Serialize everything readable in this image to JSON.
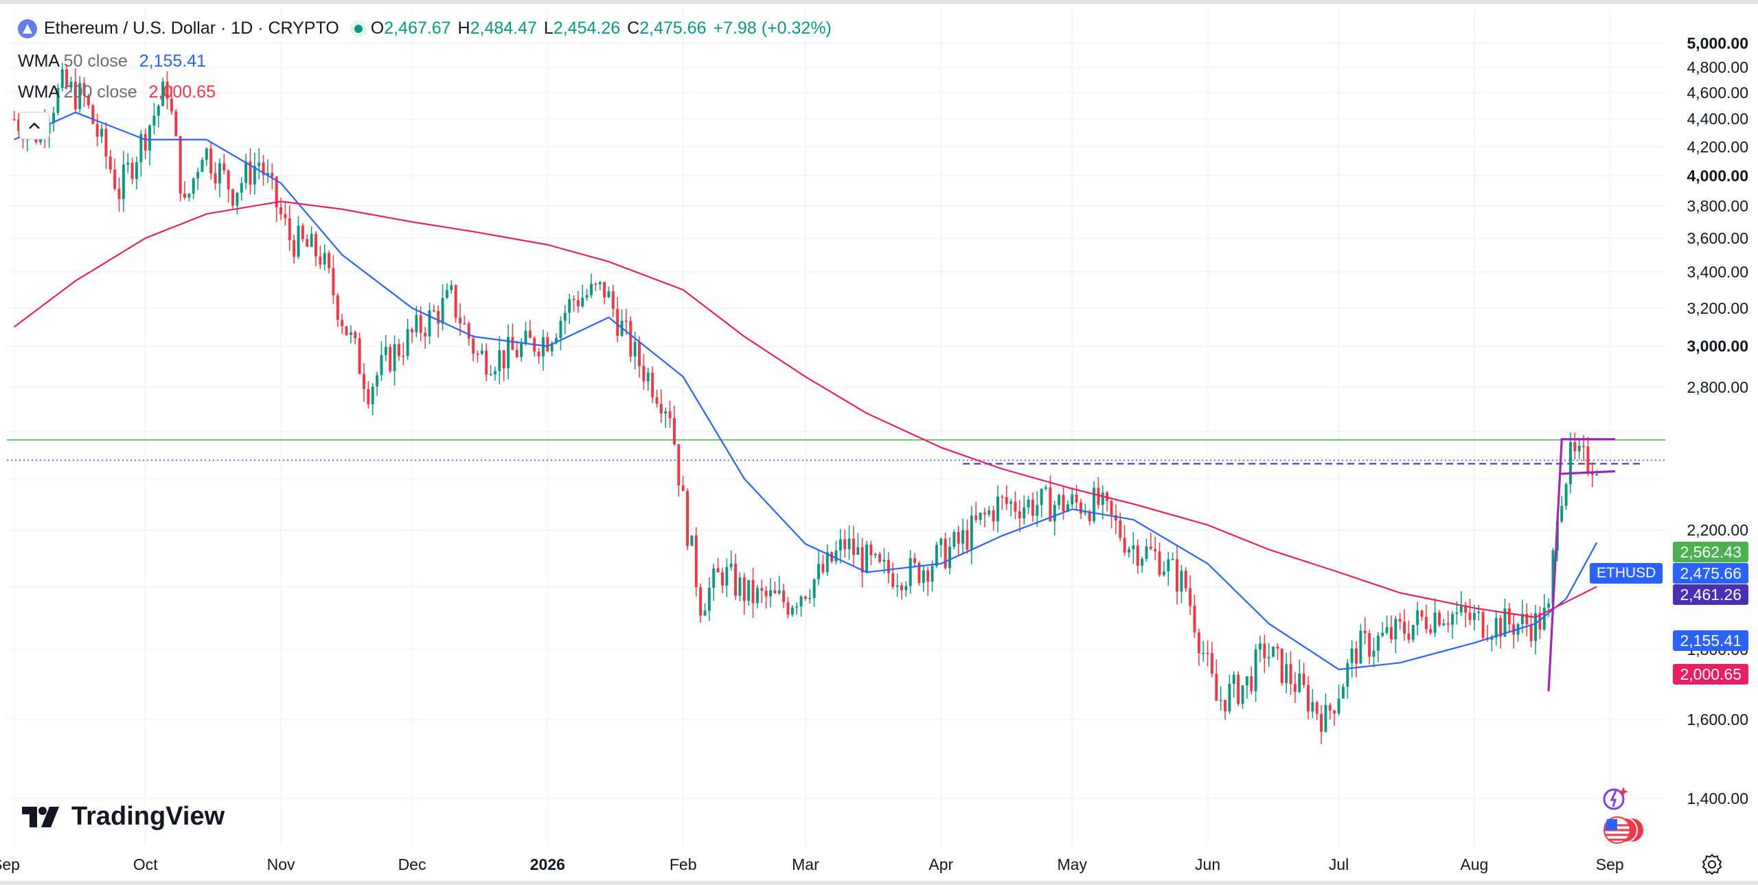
{
  "header": {
    "symbol_title": "Ethereum / U.S. Dollar · 1D · CRYPTO",
    "open_key": "O",
    "open": "2,467.67",
    "high_key": "H",
    "high": "2,484.47",
    "low_key": "L",
    "low": "2,454.26",
    "close_key": "C",
    "close": "2,475.66",
    "change": "+7.98 (+0.32%)"
  },
  "indicators": {
    "wma50": {
      "name": "WMA",
      "params": "50 close",
      "value": "2,155.41"
    },
    "wma200": {
      "name": "WMA",
      "params": "200 close",
      "value": "2,000.65"
    }
  },
  "brand": {
    "name": "TradingView"
  },
  "colors": {
    "up": "#089981",
    "down": "#f23645",
    "wma50": "#2962ff",
    "wma200": "#e91e63",
    "resistance": "#4caf50",
    "pattern": "#9c27b0",
    "symbol_tag": "#2962ff",
    "level_tag": "#4a2fb5"
  },
  "axis_labels": {
    "prices": [
      "5,000.00",
      "4,800.00",
      "4,600.00",
      "4,400.00",
      "4,200.00",
      "4,000.00",
      "3,800.00",
      "3,600.00",
      "3,400.00",
      "3,200.00",
      "3,000.00",
      "2,800.00",
      "2,200.00",
      "1,800.00",
      "1,600.00",
      "1,400.00"
    ],
    "bold_prices": [
      "5,000.00",
      "4,000.00",
      "3,000.00"
    ],
    "months": [
      "Sep",
      "Oct",
      "Nov",
      "Dec",
      "2026",
      "Feb",
      "Mar",
      "Apr",
      "May",
      "Jun",
      "Jul",
      "Aug",
      "Sep"
    ]
  },
  "price_tags": {
    "resistance": "2,562.43",
    "symbol": "ETHUSD",
    "last": "2,475.66",
    "level": "2,461.26",
    "wma50": "2,155.41",
    "wma200": "2,000.65"
  },
  "chart_data": {
    "type": "candlestick",
    "scale": "log",
    "ylim": [
      1330,
      5150
    ],
    "x_range": [
      "2025-08-30",
      "2026-09-14"
    ],
    "grid": true,
    "legend": "top-left",
    "series": [
      {
        "name": "Ethereum / U.S. Dollar",
        "kind": "candles",
        "anchors": [
          [
            "2025-09-01",
            4400
          ],
          [
            "2025-09-06",
            4300
          ],
          [
            "2025-09-12",
            4650
          ],
          [
            "2025-09-17",
            4550
          ],
          [
            "2025-09-25",
            3900
          ],
          [
            "2025-10-01",
            4300
          ],
          [
            "2025-10-06",
            4650
          ],
          [
            "2025-10-10",
            3780
          ],
          [
            "2025-10-14",
            4200
          ],
          [
            "2025-10-21",
            3900
          ],
          [
            "2025-10-27",
            4100
          ],
          [
            "2025-11-03",
            3600
          ],
          [
            "2025-11-10",
            3500
          ],
          [
            "2025-11-15",
            3150
          ],
          [
            "2025-11-21",
            2800
          ],
          [
            "2025-11-26",
            2950
          ],
          [
            "2025-12-03",
            3100
          ],
          [
            "2025-12-10",
            3250
          ],
          [
            "2025-12-16",
            2950
          ],
          [
            "2025-12-22",
            2950
          ],
          [
            "2026-01-01",
            3050
          ],
          [
            "2026-01-07",
            3250
          ],
          [
            "2026-01-14",
            3300
          ],
          [
            "2026-01-21",
            2950
          ],
          [
            "2026-01-29",
            2700
          ],
          [
            "2026-02-01",
            2300
          ],
          [
            "2026-02-05",
            1950
          ],
          [
            "2026-02-10",
            2050
          ],
          [
            "2026-02-16",
            1970
          ],
          [
            "2026-02-25",
            1950
          ],
          [
            "2026-03-05",
            2050
          ],
          [
            "2026-03-10",
            2150
          ],
          [
            "2026-03-18",
            2050
          ],
          [
            "2026-03-26",
            2050
          ],
          [
            "2026-04-05",
            2150
          ],
          [
            "2026-04-14",
            2300
          ],
          [
            "2026-04-21",
            2300
          ],
          [
            "2026-04-28",
            2300
          ],
          [
            "2026-05-07",
            2300
          ],
          [
            "2026-05-14",
            2150
          ],
          [
            "2026-05-21",
            2100
          ],
          [
            "2026-05-27",
            2000
          ],
          [
            "2026-06-03",
            1650
          ],
          [
            "2026-06-10",
            1700
          ],
          [
            "2026-06-14",
            1800
          ],
          [
            "2026-06-21",
            1700
          ],
          [
            "2026-06-28",
            1600
          ],
          [
            "2026-07-05",
            1800
          ],
          [
            "2026-07-14",
            1850
          ],
          [
            "2026-07-24",
            1920
          ],
          [
            "2026-08-04",
            1880
          ],
          [
            "2026-08-15",
            1880
          ],
          [
            "2026-08-18",
            1910
          ],
          [
            "2026-08-20",
            2300
          ],
          [
            "2026-08-23",
            2480
          ],
          [
            "2026-08-26",
            2470
          ],
          [
            "2026-08-29",
            2475
          ]
        ]
      },
      {
        "name": "WMA 50 close",
        "values": [
          [
            "2025-09-01",
            4250
          ],
          [
            "2025-09-15",
            4450
          ],
          [
            "2025-10-01",
            4250
          ],
          [
            "2025-10-15",
            4250
          ],
          [
            "2025-11-01",
            3950
          ],
          [
            "2025-11-15",
            3500
          ],
          [
            "2025-12-01",
            3200
          ],
          [
            "2025-12-15",
            3050
          ],
          [
            "2026-01-01",
            3000
          ],
          [
            "2026-01-15",
            3150
          ],
          [
            "2026-02-01",
            2850
          ],
          [
            "2026-02-15",
            2400
          ],
          [
            "2026-03-01",
            2150
          ],
          [
            "2026-03-15",
            2050
          ],
          [
            "2026-04-01",
            2080
          ],
          [
            "2026-04-15",
            2180
          ],
          [
            "2026-05-01",
            2280
          ],
          [
            "2026-05-15",
            2240
          ],
          [
            "2026-06-01",
            2080
          ],
          [
            "2026-06-15",
            1880
          ],
          [
            "2026-07-01",
            1740
          ],
          [
            "2026-07-15",
            1760
          ],
          [
            "2026-08-01",
            1820
          ],
          [
            "2026-08-15",
            1880
          ],
          [
            "2026-08-22",
            1960
          ],
          [
            "2026-08-29",
            2155
          ]
        ]
      },
      {
        "name": "WMA 200 close",
        "values": [
          [
            "2025-09-01",
            3100
          ],
          [
            "2025-09-15",
            3350
          ],
          [
            "2025-10-01",
            3600
          ],
          [
            "2025-10-15",
            3750
          ],
          [
            "2025-11-01",
            3830
          ],
          [
            "2025-11-15",
            3780
          ],
          [
            "2025-12-01",
            3700
          ],
          [
            "2025-12-15",
            3640
          ],
          [
            "2026-01-01",
            3560
          ],
          [
            "2026-01-15",
            3460
          ],
          [
            "2026-02-01",
            3300
          ],
          [
            "2026-02-15",
            3050
          ],
          [
            "2026-03-01",
            2850
          ],
          [
            "2026-03-15",
            2680
          ],
          [
            "2026-04-01",
            2530
          ],
          [
            "2026-04-15",
            2440
          ],
          [
            "2026-05-01",
            2360
          ],
          [
            "2026-05-15",
            2300
          ],
          [
            "2026-06-01",
            2220
          ],
          [
            "2026-06-15",
            2130
          ],
          [
            "2026-07-01",
            2050
          ],
          [
            "2026-07-15",
            1980
          ],
          [
            "2026-08-01",
            1930
          ],
          [
            "2026-08-15",
            1900
          ],
          [
            "2026-08-29",
            2000.65
          ]
        ]
      }
    ],
    "lines": {
      "resistance": 2562.43,
      "last": 2475.66,
      "level": 2461.26,
      "level_dashed_from": "2026-04-06",
      "flag_pole": [
        [
          "2026-08-18",
          1680
        ],
        [
          "2026-08-21",
          2562.43
        ]
      ],
      "flag_top": [
        [
          "2026-08-21",
          2565
        ],
        [
          "2026-09-02",
          2565
        ]
      ],
      "flag_bottom": [
        [
          "2026-08-21",
          2420
        ],
        [
          "2026-09-02",
          2430
        ]
      ]
    }
  }
}
